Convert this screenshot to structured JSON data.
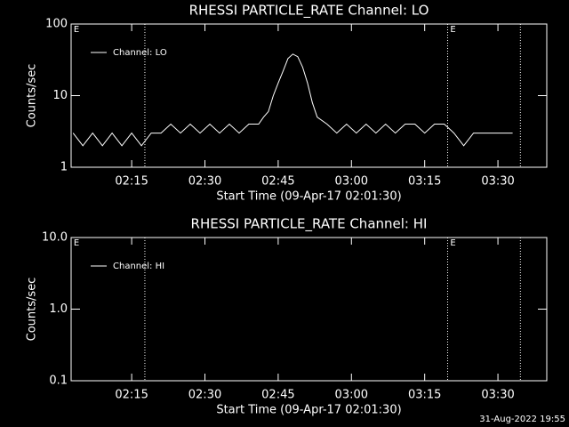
{
  "chart_data": [
    {
      "type": "line",
      "title": "RHESSI PARTICLE_RATE Channel: LO",
      "x_label": "Start Time (09-Apr-17 02:01:30)",
      "y_label": "Counts/sec",
      "log_y": true,
      "legend": "upper left",
      "xlim": [
        2.6,
        100
      ],
      "ylim": [
        1,
        100
      ],
      "xticks": [
        {
          "value": 15,
          "label": "02:15"
        },
        {
          "value": 30,
          "label": "02:30"
        },
        {
          "value": 45,
          "label": "02:45"
        },
        {
          "value": 60,
          "label": "03:00"
        },
        {
          "value": 75,
          "label": "03:15"
        },
        {
          "value": 90,
          "label": "03:30"
        }
      ],
      "yticks": [
        1,
        10,
        100
      ],
      "markers": [
        17.7,
        79.7,
        94.6
      ],
      "annotations": [
        {
          "text": "E",
          "x": 2.6
        },
        {
          "text": "E",
          "x": 79.7
        }
      ],
      "x": [
        3,
        5,
        7,
        9,
        11,
        13,
        15,
        17,
        19,
        21,
        23,
        25,
        27,
        29,
        31,
        33,
        35,
        37,
        39,
        41,
        42,
        43,
        44,
        45,
        46,
        47,
        48,
        49,
        50,
        51,
        52,
        53,
        55,
        57,
        59,
        61,
        63,
        65,
        67,
        69,
        71,
        73,
        75,
        77,
        79,
        81,
        83,
        85,
        87,
        89,
        91,
        93
      ],
      "series": [
        {
          "name": "Channel: LO",
          "color": "#ffffff",
          "values": [
            3,
            2,
            3,
            2,
            3,
            2,
            3,
            2,
            3,
            3,
            4,
            3,
            4,
            3,
            4,
            3,
            4,
            3,
            4,
            4,
            5,
            6,
            10,
            15,
            22,
            33,
            38,
            35,
            25,
            15,
            8,
            5,
            4,
            3,
            4,
            3,
            4,
            3,
            4,
            3,
            4,
            4,
            3,
            4,
            4,
            3,
            2,
            3,
            3,
            3,
            3,
            3
          ]
        }
      ]
    },
    {
      "type": "line",
      "title": "RHESSI PARTICLE_RATE Channel: HI",
      "x_label": "Start Time (09-Apr-17 02:01:30)",
      "y_label": "Counts/sec",
      "log_y": true,
      "legend": "upper left",
      "xlim": [
        2.6,
        100
      ],
      "ylim": [
        0.1,
        10
      ],
      "xticks": [
        {
          "value": 15,
          "label": "02:15"
        },
        {
          "value": 30,
          "label": "02:30"
        },
        {
          "value": 45,
          "label": "02:45"
        },
        {
          "value": 60,
          "label": "03:00"
        },
        {
          "value": 75,
          "label": "03:15"
        },
        {
          "value": 90,
          "label": "03:30"
        }
      ],
      "yticks": [
        0.1,
        {
          "value": 1,
          "label": "1.0"
        },
        {
          "value": 10,
          "label": "10.0"
        }
      ],
      "markers": [
        17.7,
        79.7,
        94.6
      ],
      "annotations": [
        {
          "text": "E",
          "x": 2.6
        },
        {
          "text": "E",
          "x": 79.7
        }
      ],
      "x": [],
      "series": [
        {
          "name": "Channel: HI",
          "color": "#ffffff",
          "values": []
        }
      ]
    }
  ],
  "footer": "31-Aug-2022 19:55"
}
